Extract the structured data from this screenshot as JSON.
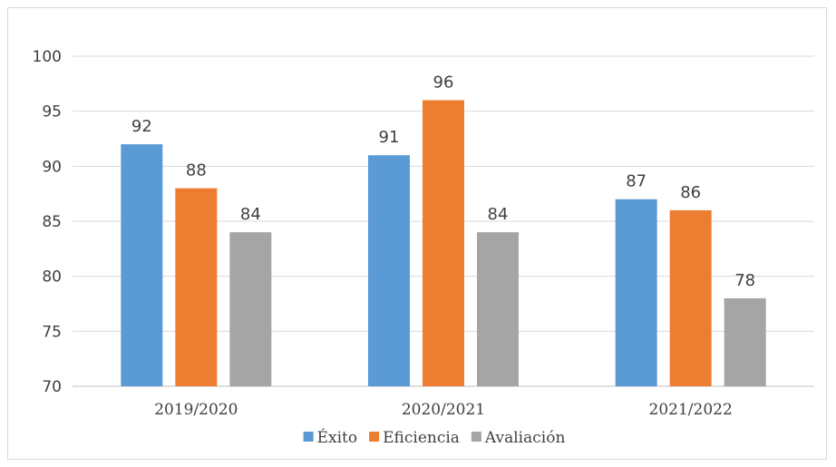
{
  "chart_data": {
    "type": "bar",
    "categories": [
      "2019/2020",
      "2020/2021",
      "2021/2022"
    ],
    "series": [
      {
        "name": "Éxito",
        "values": [
          92,
          91,
          87
        ],
        "color": "#5b9bd5"
      },
      {
        "name": "Eficiencia",
        "values": [
          88,
          96,
          86
        ],
        "color": "#ed7d31"
      },
      {
        "name": "Avaliación",
        "values": [
          84,
          84,
          78
        ],
        "color": "#a5a5a5"
      }
    ],
    "ylim": [
      70,
      100
    ],
    "yticks": [
      70,
      75,
      80,
      85,
      90,
      95,
      100
    ],
    "grid": true,
    "legend_position": "bottom",
    "data_labels": true
  }
}
